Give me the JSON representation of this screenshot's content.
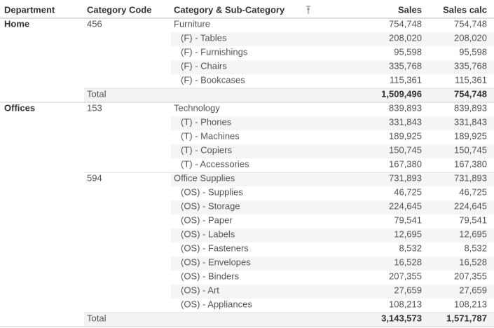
{
  "header": {
    "department": "Department",
    "category_code": "Category Code",
    "category": "Category & Sub-Category",
    "sales": "Sales",
    "sales_calc": "Sales calc"
  },
  "rows": [
    {
      "department": "Home",
      "category_code": "456",
      "category": "Furniture",
      "sales": "754,748",
      "sales_calc": "754,748"
    },
    {
      "category": "(F) - Tables",
      "sales": "208,020",
      "sales_calc": "208,020"
    },
    {
      "category": "(F) - Furnishings",
      "sales": "95,598",
      "sales_calc": "95,598"
    },
    {
      "category": "(F) - Chairs",
      "sales": "335,768",
      "sales_calc": "335,768"
    },
    {
      "category": "(F) - Bookcases",
      "sales": "115,361",
      "sales_calc": "115,361"
    },
    {
      "category_code": "Total",
      "sales": "1,509,496",
      "sales_calc": "754,748",
      "total": true
    },
    {
      "department": "Offices",
      "category_code": "153",
      "category": "Technology",
      "sales": "839,893",
      "sales_calc": "839,893"
    },
    {
      "category": "(T) - Phones",
      "sales": "331,843",
      "sales_calc": "331,843"
    },
    {
      "category": "(T) - Machines",
      "sales": "189,925",
      "sales_calc": "189,925"
    },
    {
      "category": "(T) - Copiers",
      "sales": "150,745",
      "sales_calc": "150,745"
    },
    {
      "category": "(T) - Accessories",
      "sales": "167,380",
      "sales_calc": "167,380"
    },
    {
      "category_code": "594",
      "category": "Office Supplies",
      "sales": "731,893",
      "sales_calc": "731,893"
    },
    {
      "category": "(OS) - Supplies",
      "sales": "46,725",
      "sales_calc": "46,725"
    },
    {
      "category": "(OS) - Storage",
      "sales": "224,645",
      "sales_calc": "224,645"
    },
    {
      "category": "(OS) - Paper",
      "sales": "79,541",
      "sales_calc": "79,541"
    },
    {
      "category": "(OS) - Labels",
      "sales": "12,695",
      "sales_calc": "12,695"
    },
    {
      "category": "(OS) - Fasteners",
      "sales": "8,532",
      "sales_calc": "8,532"
    },
    {
      "category": "(OS) - Envelopes",
      "sales": "16,528",
      "sales_calc": "16,528"
    },
    {
      "category": "(OS) - Binders",
      "sales": "207,355",
      "sales_calc": "207,355"
    },
    {
      "category": "(OS) - Art",
      "sales": "27,659",
      "sales_calc": "27,659"
    },
    {
      "category": "(OS) - Appliances",
      "sales": "108,213",
      "sales_calc": "108,213"
    },
    {
      "category_code": "Total",
      "sales": "3,143,573",
      "sales_calc": "1,571,787",
      "total": true
    }
  ]
}
